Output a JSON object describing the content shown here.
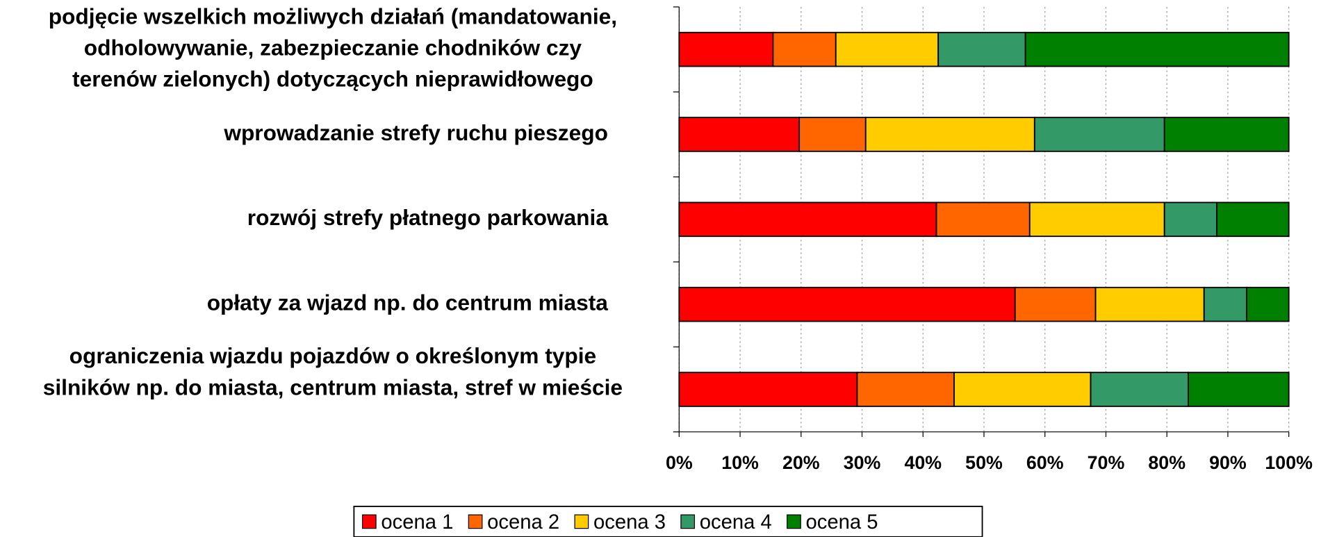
{
  "chart_data": {
    "type": "stacked_barh",
    "categories": [
      [
        "podjęcie wszelkich możliwych działań (mandatowanie,",
        "odholowywanie, zabezpieczanie chodników czy",
        "terenów zielonych) dotyczących nieprawidłowego"
      ],
      [
        "wprowadzanie strefy ruchu pieszego"
      ],
      [
        "rozwój strefy płatnego parkowania"
      ],
      [
        "opłaty za wjazd np. do centrum miasta"
      ],
      [
        "ograniczenia wjazdu pojazdów o określonym typie",
        "silników np. do miasta, centrum miasta, stref w mieście"
      ]
    ],
    "series": [
      {
        "name": "ocena 1",
        "color": "#ff0000",
        "values": [
          15.4,
          19.7,
          42.2,
          55.1,
          29.2
        ]
      },
      {
        "name": "ocena 2",
        "color": "#ff6600",
        "values": [
          10.3,
          10.9,
          15.3,
          13.2,
          15.9
        ]
      },
      {
        "name": "ocena 3",
        "color": "#ffcc00",
        "values": [
          16.8,
          27.7,
          22.1,
          17.8,
          22.4
        ]
      },
      {
        "name": "ocena 4",
        "color": "#339966",
        "values": [
          14.3,
          21.3,
          8.6,
          7.0,
          16.0
        ]
      },
      {
        "name": "ocena 5",
        "color": "#008000",
        "values": [
          43.2,
          20.4,
          11.8,
          6.9,
          16.5
        ]
      }
    ],
    "xlim": [
      0,
      100
    ],
    "xticks": [
      {
        "value": 0,
        "label": "0%"
      },
      {
        "value": 10,
        "label": "10%"
      },
      {
        "value": 20,
        "label": "20%"
      },
      {
        "value": 30,
        "label": "30%"
      },
      {
        "value": 40,
        "label": "40%"
      },
      {
        "value": 50,
        "label": "50%"
      },
      {
        "value": 60,
        "label": "60%"
      },
      {
        "value": 70,
        "label": "70%"
      },
      {
        "value": 80,
        "label": "80%"
      },
      {
        "value": 90,
        "label": "90%"
      },
      {
        "value": 100,
        "label": "100%"
      }
    ],
    "grid": true,
    "legend": "bottom"
  }
}
